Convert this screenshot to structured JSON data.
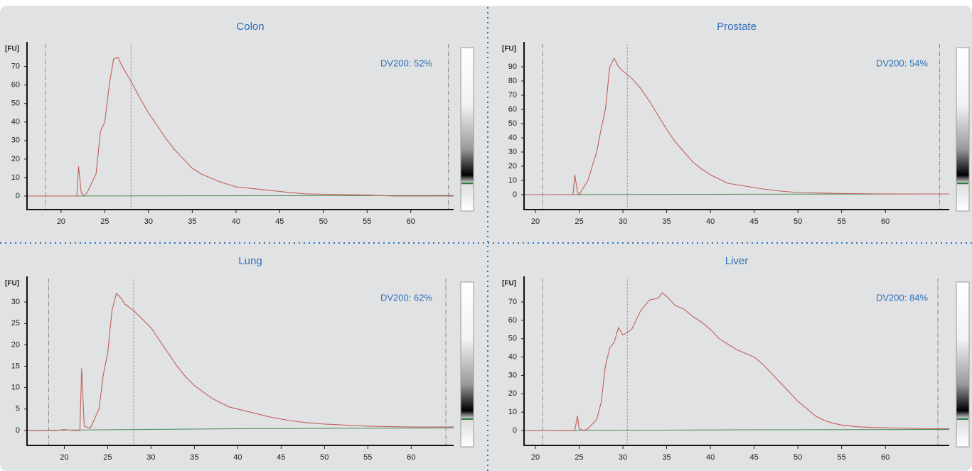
{
  "chart_data": [
    {
      "type": "line",
      "title": "Colon",
      "annotation": "DV200: 52%",
      "ylabel": "[FU]",
      "xlim": [
        16.1,
        64.9
      ],
      "ylim": [
        -7.3,
        81
      ],
      "xticks": [
        20,
        25,
        30,
        35,
        40,
        45,
        50,
        55,
        60
      ],
      "yticks": [
        0,
        10,
        20,
        30,
        40,
        50,
        60,
        70
      ],
      "vlines": [
        18.2,
        28,
        64.3
      ],
      "x": [
        16.1,
        21.8,
        22,
        22.3,
        22.6,
        23,
        24,
        24.5,
        25,
        25.5,
        26,
        26.5,
        27,
        28,
        29,
        30,
        31,
        32,
        33,
        34,
        35,
        36,
        37,
        38,
        39,
        40,
        42,
        44,
        46,
        48,
        50,
        55,
        58,
        60,
        64.9
      ],
      "series": [
        {
          "color": "#c0605a",
          "values": [
            0,
            0,
            16,
            2,
            0,
            2,
            12,
            35,
            40,
            60,
            74,
            75,
            70,
            62,
            53,
            45,
            38,
            31,
            25,
            20,
            15,
            12,
            10,
            8,
            6.5,
            5,
            4,
            3,
            2,
            1.2,
            1,
            0.6,
            0,
            0,
            0
          ]
        }
      ],
      "baseline": {
        "color": "#4a8a55",
        "x": [
          16.1,
          42,
          64.9
        ],
        "values": [
          0,
          0.2,
          0.3
        ]
      }
    },
    {
      "type": "line",
      "title": "Prostate",
      "annotation": "DV200: 54%",
      "ylabel": "[FU]",
      "xlim": [
        18.7,
        67.3
      ],
      "ylim": [
        -10.5,
        104.5
      ],
      "xticks": [
        20,
        25,
        30,
        35,
        40,
        45,
        50,
        55,
        60
      ],
      "yticks": [
        0,
        10,
        20,
        30,
        40,
        50,
        60,
        70,
        80,
        90
      ],
      "vlines": [
        20.8,
        30.5,
        66.2
      ],
      "x": [
        18.7,
        24.3,
        24.5,
        24.8,
        25,
        26,
        27,
        27.5,
        28,
        28.5,
        29,
        29.5,
        30,
        31,
        32,
        33,
        34,
        35,
        36,
        37,
        38,
        39,
        40,
        41,
        42,
        43,
        44,
        46,
        48,
        50,
        55,
        60,
        67.3
      ],
      "series": [
        {
          "color": "#c0605a",
          "values": [
            0,
            0,
            14,
            2,
            0,
            10,
            30,
            46,
            60,
            90,
            96,
            90,
            87,
            82,
            75,
            66,
            56,
            46,
            37,
            30,
            23,
            18,
            14,
            11,
            8,
            7,
            6,
            4,
            2.5,
            1.5,
            0.8,
            0.5,
            0.5
          ]
        }
      ],
      "baseline": {
        "color": "#4a8a55",
        "x": [
          18.7,
          44,
          67.3
        ],
        "values": [
          0,
          0.3,
          0.5
        ]
      }
    },
    {
      "type": "line",
      "title": "Lung",
      "annotation": "DV200: 62%",
      "ylabel": "[FU]",
      "xlim": [
        15.7,
        64.9
      ],
      "ylim": [
        -3.5,
        35
      ],
      "xticks": [
        20,
        25,
        30,
        35,
        40,
        45,
        50,
        55,
        60
      ],
      "yticks": [
        0,
        5,
        10,
        15,
        20,
        25,
        30
      ],
      "vlines": [
        18.2,
        28,
        64
      ],
      "x": [
        15.7,
        19,
        20,
        21,
        21.8,
        22,
        22.3,
        23,
        24,
        24.5,
        25,
        25.5,
        26,
        26.5,
        27,
        28,
        29,
        30,
        31,
        32,
        33,
        34,
        35,
        36,
        37,
        38,
        39,
        40,
        42,
        44,
        46,
        48,
        50,
        55,
        60,
        64.9
      ],
      "series": [
        {
          "color": "#c0605a",
          "values": [
            0,
            0,
            0.2,
            0,
            0,
            14.5,
            1,
            0.5,
            5,
            13,
            18,
            28,
            32,
            31,
            29.5,
            28,
            26,
            24,
            21,
            18,
            15,
            12.5,
            10.5,
            9,
            7.5,
            6.5,
            5.5,
            5,
            4,
            3,
            2.3,
            1.8,
            1.5,
            1,
            0.8,
            0.8
          ]
        }
      ],
      "baseline": {
        "color": "#4a8a55",
        "x": [
          15.7,
          40,
          64.9
        ],
        "values": [
          0,
          0.4,
          0.6
        ]
      }
    },
    {
      "type": "line",
      "title": "Liver",
      "annotation": "DV200: 84%",
      "ylabel": "[FU]",
      "xlim": [
        18.7,
        67.3
      ],
      "ylim": [
        -8.1,
        81.6
      ],
      "xticks": [
        20,
        25,
        30,
        35,
        40,
        45,
        50,
        55,
        60
      ],
      "yticks": [
        0,
        10,
        20,
        30,
        40,
        50,
        60,
        70
      ],
      "vlines": [
        20.8,
        30.5,
        66
      ],
      "x": [
        18.7,
        24.5,
        24.8,
        25,
        25.5,
        26,
        27,
        27.5,
        28,
        28.5,
        29,
        29.5,
        30,
        31,
        32,
        33,
        34,
        34.5,
        35,
        36,
        37,
        38,
        39,
        40,
        41,
        42,
        43,
        44,
        45,
        46,
        47,
        48,
        49,
        50,
        51,
        52,
        53,
        54,
        55,
        57,
        60,
        65,
        67.3
      ],
      "series": [
        {
          "color": "#c0605a",
          "values": [
            0,
            0,
            8,
            1,
            0,
            1,
            6,
            15,
            35,
            45,
            48,
            56,
            52,
            55,
            65,
            71,
            72,
            75,
            73,
            68,
            66,
            62,
            59,
            55,
            50,
            47,
            44,
            42,
            40,
            36,
            31,
            26,
            21,
            16,
            12,
            8,
            5.5,
            4,
            3,
            2,
            1.5,
            1,
            1
          ]
        }
      ],
      "baseline": {
        "color": "#4a8a55",
        "x": [
          18.7,
          44,
          67.3
        ],
        "values": [
          0,
          0.4,
          0.6
        ]
      }
    }
  ]
}
